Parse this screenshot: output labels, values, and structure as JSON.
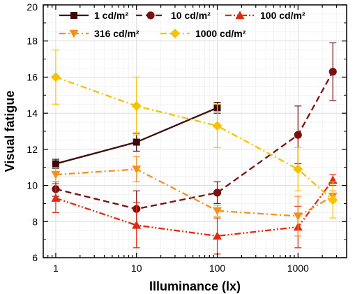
{
  "chart_data": {
    "type": "line",
    "xlabel": "Illuminance (lx)",
    "ylabel": "Visual fatigue",
    "xscale": "log",
    "xlim": [
      0.7,
      4000
    ],
    "ylim": [
      6,
      20
    ],
    "xticks": [
      1,
      10,
      100,
      1000
    ],
    "xtick_labels": [
      "1",
      "10",
      "100",
      "1000"
    ],
    "yticks": [
      6,
      8,
      10,
      12,
      14,
      16,
      18,
      20
    ],
    "ytick_labels": [
      "6",
      "8",
      "10",
      "12",
      "14",
      "16",
      "18",
      "20"
    ],
    "grid": true,
    "legend_position": "top",
    "series": [
      {
        "name": "1 cd/m²",
        "color": "#3d0a0a",
        "marker": "square",
        "dash": "solid",
        "x": [
          1,
          10,
          100
        ],
        "y": [
          11.2,
          12.4,
          14.3
        ],
        "err": [
          0.25,
          0.5,
          0.3
        ]
      },
      {
        "name": "10 cd/m²",
        "color": "#7a1010",
        "marker": "circle",
        "dash": "dash",
        "x": [
          1,
          10,
          100,
          1000,
          2700
        ],
        "y": [
          9.8,
          8.7,
          9.6,
          12.8,
          16.3
        ],
        "err": [
          0.4,
          1.0,
          0.6,
          1.6,
          1.6
        ]
      },
      {
        "name": "100 cd/m²",
        "color": "#e02a10",
        "marker": "triangle-up",
        "dash": "dashdotdot",
        "x": [
          1,
          10,
          100,
          1000,
          2700
        ],
        "y": [
          9.3,
          7.8,
          7.2,
          7.7,
          10.3
        ],
        "err": [
          0.8,
          1.25,
          1.0,
          1.15,
          0.3
        ]
      },
      {
        "name": "316 cd/m²",
        "color": "#f39020",
        "marker": "triangle-down",
        "dash": "dashdot",
        "x": [
          1,
          10,
          100,
          1000,
          2700
        ],
        "y": [
          10.6,
          10.9,
          8.6,
          8.3,
          9.4
        ],
        "err": [
          0.4,
          0.7,
          0.3,
          1.1,
          0.3
        ]
      },
      {
        "name": "1000 cd/m²",
        "color": "#f5c200",
        "marker": "diamond",
        "dash": "dashdot",
        "x": [
          1,
          10,
          100,
          1000,
          2700
        ],
        "y": [
          16.0,
          14.4,
          13.3,
          10.9,
          9.2
        ],
        "err": [
          1.5,
          1.6,
          1.2,
          1.2,
          1.0
        ]
      }
    ]
  }
}
